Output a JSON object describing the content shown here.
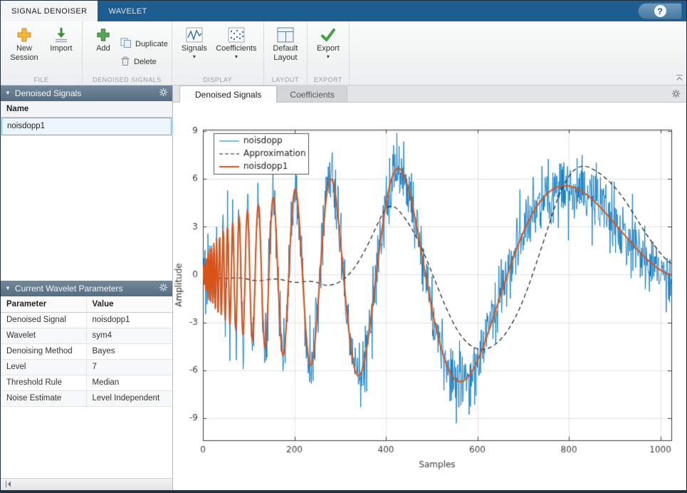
{
  "ribbon": {
    "tabs": [
      {
        "label": "SIGNAL DENOISER",
        "active": true
      },
      {
        "label": "WAVELET",
        "active": false
      }
    ],
    "help_label": "?",
    "sections": {
      "file": {
        "label": "FILE",
        "new_session": "New Session",
        "import": "Import"
      },
      "denoised": {
        "label": "DENOISED SIGNALS",
        "add": "Add",
        "duplicate": "Duplicate",
        "delete": "Delete"
      },
      "display": {
        "label": "DISPLAY",
        "signals": "Signals",
        "coefficients": "Coefficients"
      },
      "layout": {
        "label": "LAYOUT",
        "default_layout": "Default Layout"
      },
      "export": {
        "label": "EXPORT",
        "export": "Export"
      }
    }
  },
  "sidebar": {
    "signals_panel": {
      "title": "Denoised Signals",
      "name_header": "Name",
      "items": [
        {
          "name": "noisdopp1",
          "selected": true
        }
      ]
    },
    "params_panel": {
      "title": "Current Wavelet Parameters",
      "headers": [
        "Parameter",
        "Value"
      ],
      "rows": [
        {
          "param": "Denoised Signal",
          "value": "noisdopp1"
        },
        {
          "param": "Wavelet",
          "value": "sym4"
        },
        {
          "param": "Denoising Method",
          "value": "Bayes"
        },
        {
          "param": "Level",
          "value": "7"
        },
        {
          "param": "Threshold Rule",
          "value": "Median"
        },
        {
          "param": "Noise Estimate",
          "value": "Level Independent"
        }
      ]
    }
  },
  "main": {
    "tabs": [
      {
        "label": "Denoised Signals",
        "active": true
      },
      {
        "label": "Coefficients",
        "active": false
      }
    ]
  },
  "icons": {
    "caret_down": "▾",
    "panel_collapse": "▼"
  },
  "chart_data": {
    "type": "line",
    "title": "",
    "xlabel": "Samples",
    "ylabel": "Amplitude",
    "xlim": [
      0,
      1024
    ],
    "ylim": [
      -10.4,
      9.1
    ],
    "xticks": [
      0,
      200,
      400,
      600,
      800,
      1000
    ],
    "yticks": [
      -9,
      -6,
      -3,
      0,
      3,
      6,
      9
    ],
    "grid": true,
    "grid_color": "#e2e2e2",
    "axis_color": "#3c3c3c",
    "legend_position": "top-left-inside",
    "series": [
      {
        "name": "noisdopp",
        "color": "#0072BD",
        "width": 1,
        "dash": false,
        "source": "noisy"
      },
      {
        "name": "Approximation",
        "color": "#1a1a1a",
        "width": 1.2,
        "dash": true,
        "source": "points",
        "points": [
          [
            0,
            -0.1
          ],
          [
            40,
            -0.3
          ],
          [
            80,
            -0.15
          ],
          [
            120,
            -0.45
          ],
          [
            160,
            -0.2
          ],
          [
            200,
            -0.55
          ],
          [
            240,
            -0.35
          ],
          [
            270,
            -0.75
          ],
          [
            300,
            -0.5
          ],
          [
            330,
            0.3
          ],
          [
            360,
            1.8
          ],
          [
            385,
            3.4
          ],
          [
            400,
            4.2
          ],
          [
            415,
            4.35
          ],
          [
            430,
            4.0
          ],
          [
            455,
            3.0
          ],
          [
            480,
            1.6
          ],
          [
            505,
            -0.2
          ],
          [
            530,
            -2.0
          ],
          [
            555,
            -3.5
          ],
          [
            580,
            -4.4
          ],
          [
            605,
            -4.75
          ],
          [
            630,
            -4.6
          ],
          [
            655,
            -4.0
          ],
          [
            680,
            -2.9
          ],
          [
            705,
            -1.3
          ],
          [
            730,
            0.8
          ],
          [
            755,
            3.0
          ],
          [
            775,
            4.8
          ],
          [
            795,
            6.0
          ],
          [
            815,
            6.7
          ],
          [
            835,
            6.85
          ],
          [
            855,
            6.6
          ],
          [
            880,
            6.1
          ],
          [
            910,
            5.2
          ],
          [
            940,
            3.9
          ],
          [
            965,
            2.7
          ],
          [
            990,
            1.7
          ],
          [
            1010,
            1.0
          ],
          [
            1023,
            0.7
          ]
        ]
      },
      {
        "name": "noisdopp1",
        "color": "#D95319",
        "width": 2,
        "dash": false,
        "source": "clean"
      }
    ],
    "signal_model": {
      "samples": 1024,
      "formula": "amplitude*sqrt(t*(1-t))*sin(2*pi*frequency/(t+epsilon)), t=i/N",
      "amplitude": 13.5,
      "frequency": 1.05,
      "epsilon": 0.05,
      "noise_sigma": 1.0,
      "seed": 20
    }
  }
}
